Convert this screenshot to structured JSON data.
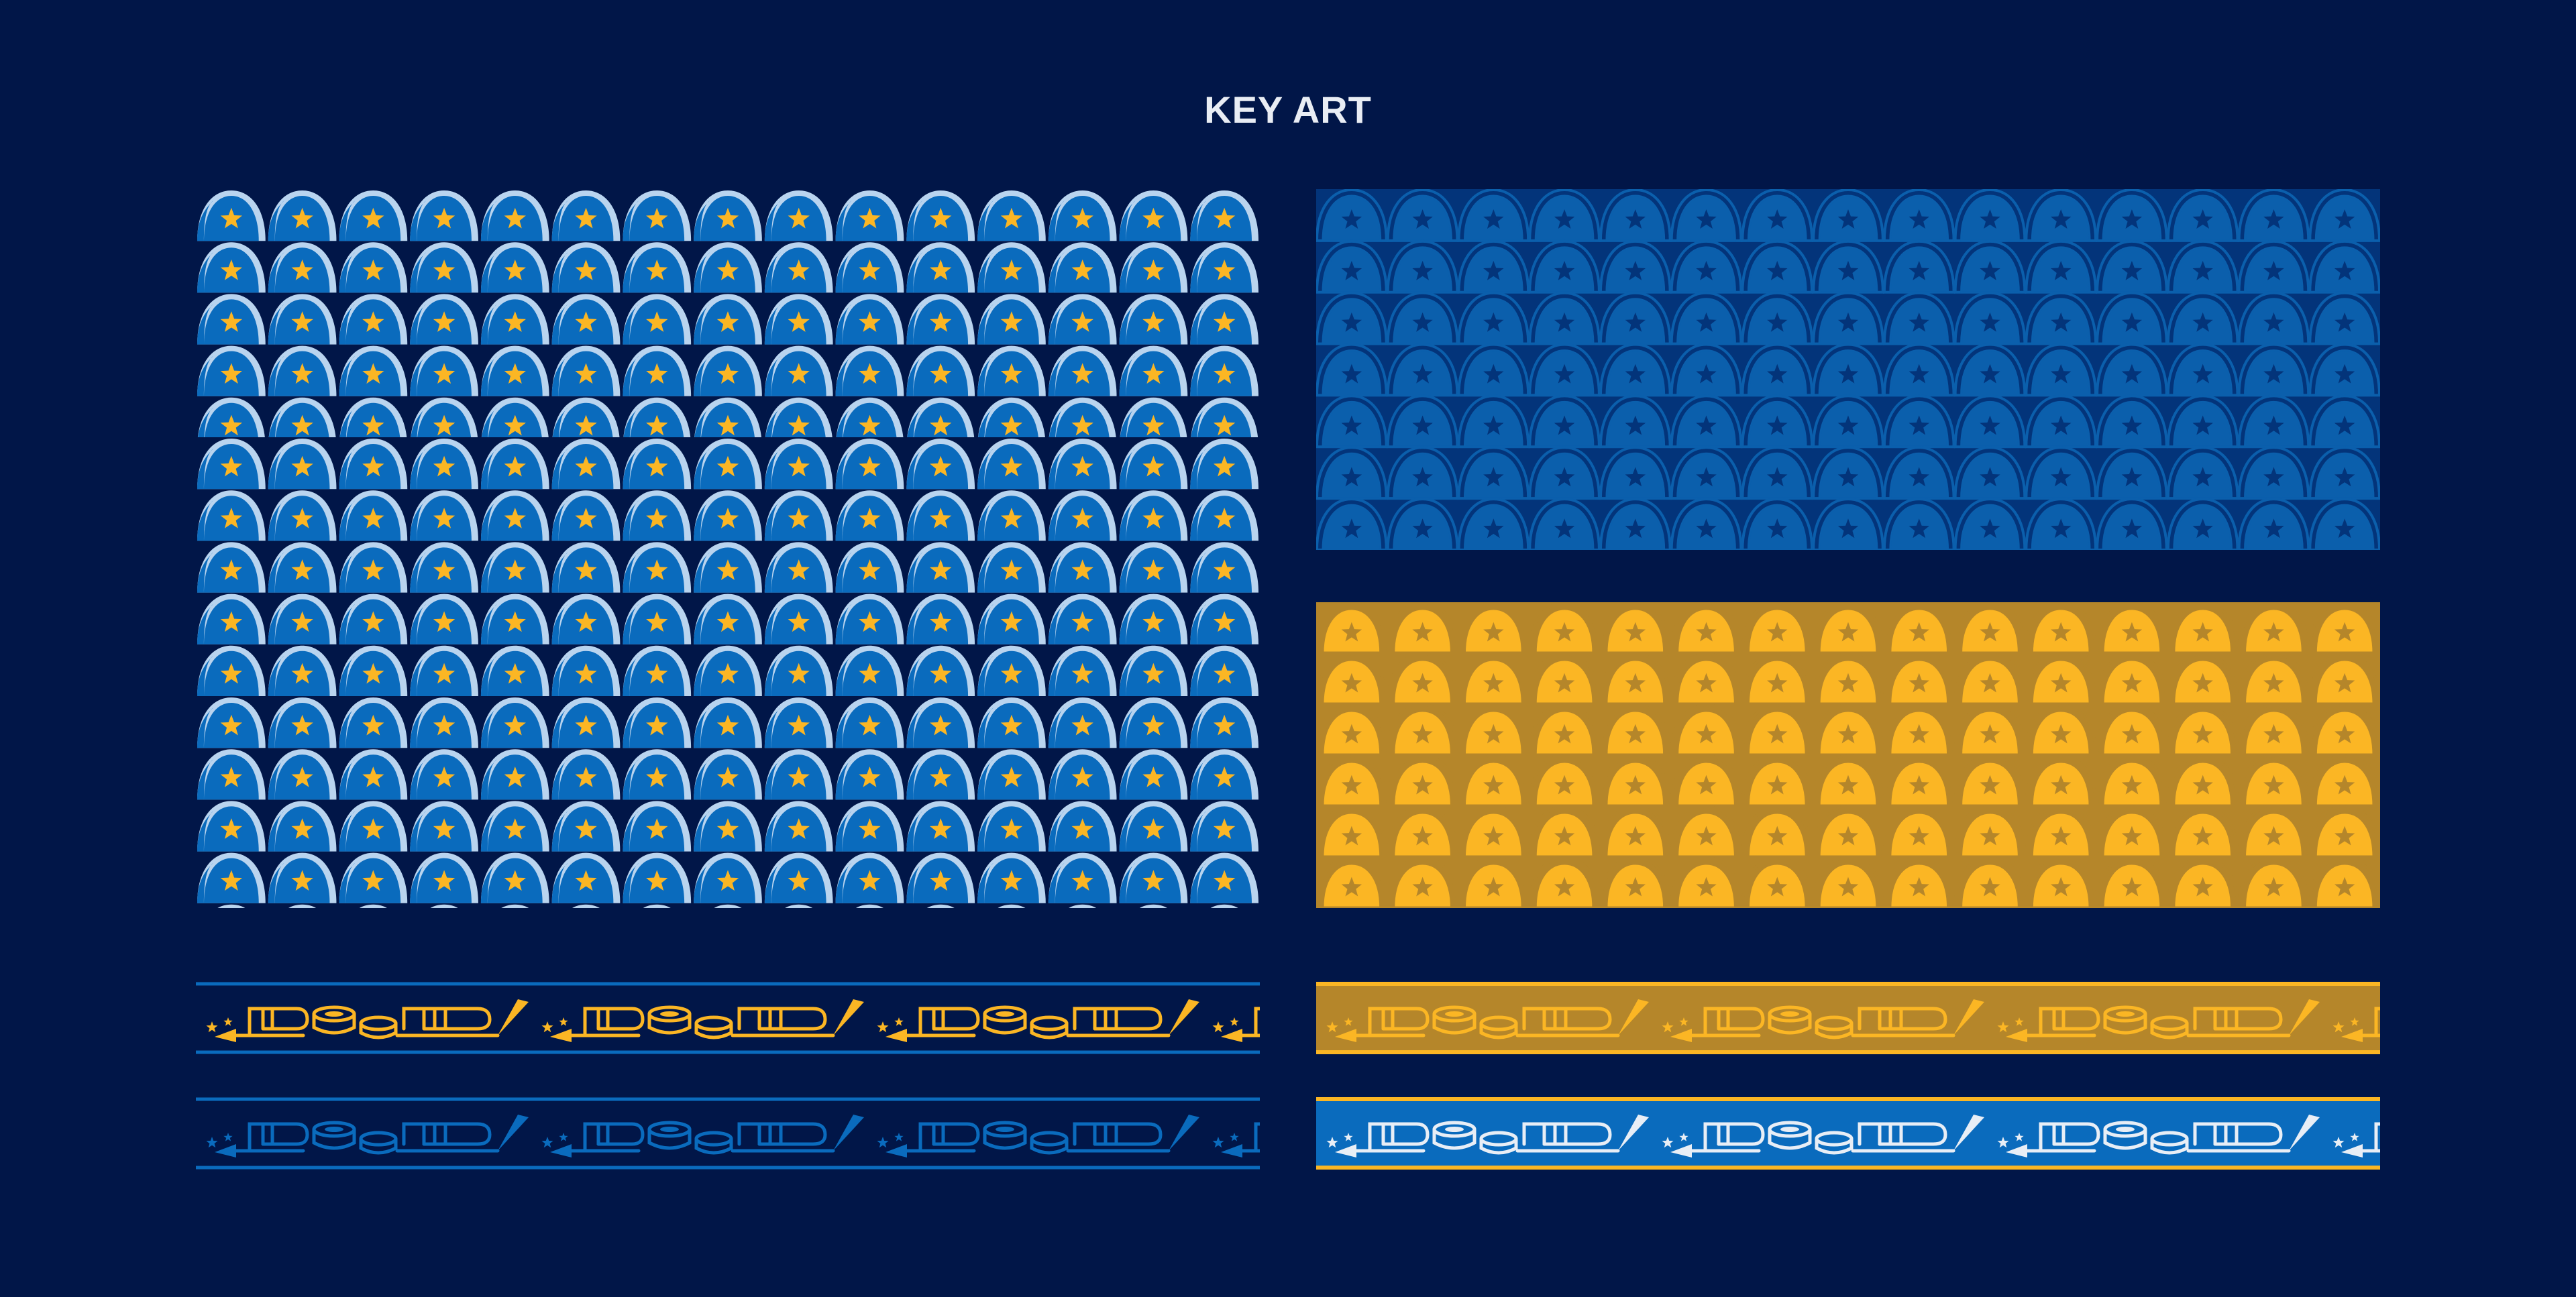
{
  "title": "KEY ART",
  "colors": {
    "background": "#011648",
    "blue": "#0a6bbd",
    "light_blue": "#b9d4ef",
    "gold": "#fbb624",
    "dark_gold": "#b5862a",
    "mid_blue": "#0b5fac",
    "deep_blue": "#03347a"
  },
  "patterns": [
    {
      "name": "arch-star-pattern",
      "palette": "blue-with-gold-stars",
      "columns": 15,
      "rows": 14
    },
    {
      "name": "arch-star-pattern",
      "palette": "tone-on-tone-blue",
      "columns": 15,
      "rows": 7
    },
    {
      "name": "arch-star-pattern",
      "palette": "tone-on-tone-gold",
      "columns": 15,
      "rows": 6
    }
  ],
  "borders": [
    {
      "name": "trumpet-drum-border",
      "palette": "gold-on-navy"
    },
    {
      "name": "trumpet-drum-border",
      "palette": "gold-on-dark-gold"
    },
    {
      "name": "trumpet-drum-border",
      "palette": "blue-on-navy"
    },
    {
      "name": "trumpet-drum-border",
      "palette": "white-on-blue"
    }
  ]
}
